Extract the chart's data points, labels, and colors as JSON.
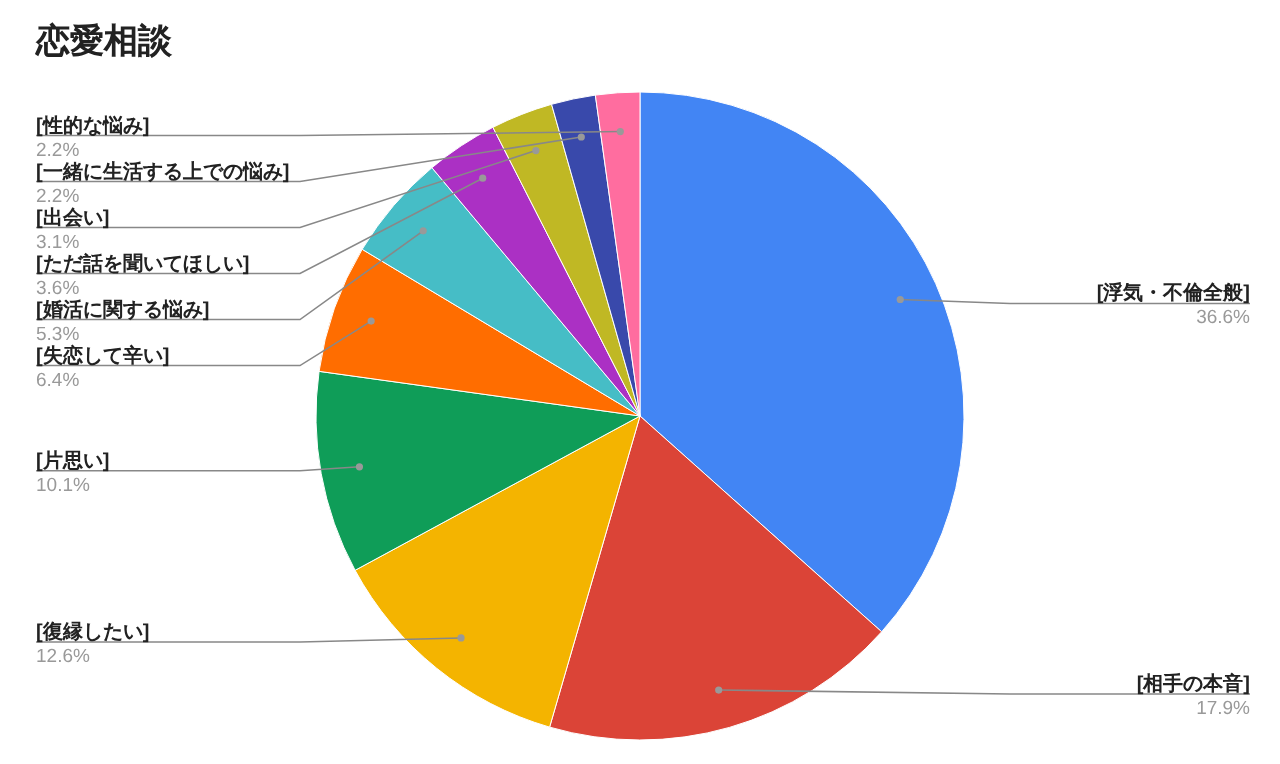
{
  "chart_data": {
    "type": "pie",
    "title": "恋愛相談",
    "categories": [
      "[浮気・不倫全般]",
      "[相手の本音]",
      "[復縁したい]",
      "[片思い]",
      "[失恋して辛い]",
      "[婚活に関する悩み]",
      "[ただ話を聞いてほしい]",
      "[出会い]",
      "[一緒に生活する上での悩み]",
      "[性的な悩み]"
    ],
    "values": [
      36.6,
      17.9,
      12.6,
      10.1,
      6.4,
      5.3,
      3.6,
      3.1,
      2.2,
      2.2
    ],
    "value_labels": [
      "36.6%",
      "17.9%",
      "12.6%",
      "10.1%",
      "6.4%",
      "5.3%",
      "3.6%",
      "3.1%",
      "2.2%",
      "2.2%"
    ],
    "colors": [
      "#4285f4",
      "#db4437",
      "#f4b400",
      "#0f9d58",
      "#ff6d00",
      "#46bdc6",
      "#ab30c4",
      "#c0b824",
      "#3949ab",
      "#ff6d9f"
    ]
  }
}
